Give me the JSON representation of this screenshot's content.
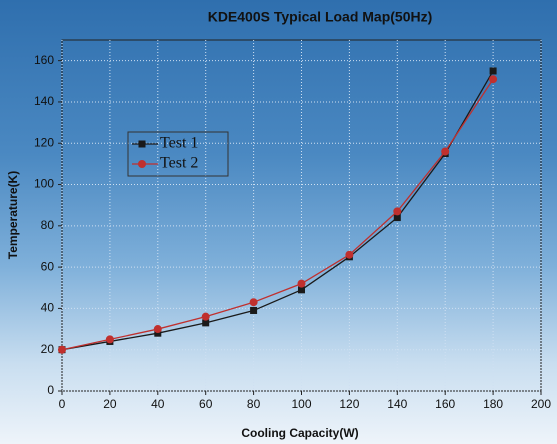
{
  "chart_data": {
    "type": "line",
    "title": "KDE400S Typical Load Map(50Hz)",
    "x_label": "Cooling Capacity(W)",
    "y_label": "Temperature(K)",
    "x": [
      0,
      20,
      40,
      60,
      80,
      100,
      120,
      140,
      160,
      180
    ],
    "series": [
      {
        "name": "Test 1",
        "color": "#1a1a1a",
        "marker": "square",
        "values": [
          20,
          24,
          28,
          33,
          39,
          49,
          65,
          84,
          115,
          155
        ]
      },
      {
        "name": "Test 2",
        "color": "#c0302e",
        "marker": "circle",
        "values": [
          20,
          25,
          30,
          36,
          43,
          52,
          66,
          87,
          116,
          151
        ]
      }
    ],
    "xlim": [
      0,
      200
    ],
    "xticks": [
      0,
      20,
      40,
      60,
      80,
      100,
      120,
      140,
      160,
      180,
      200
    ],
    "ylim": [
      0,
      170
    ],
    "yticks": [
      0,
      20,
      40,
      60,
      80,
      100,
      120,
      140,
      160
    ],
    "grid": true,
    "legend": "upper-left"
  }
}
